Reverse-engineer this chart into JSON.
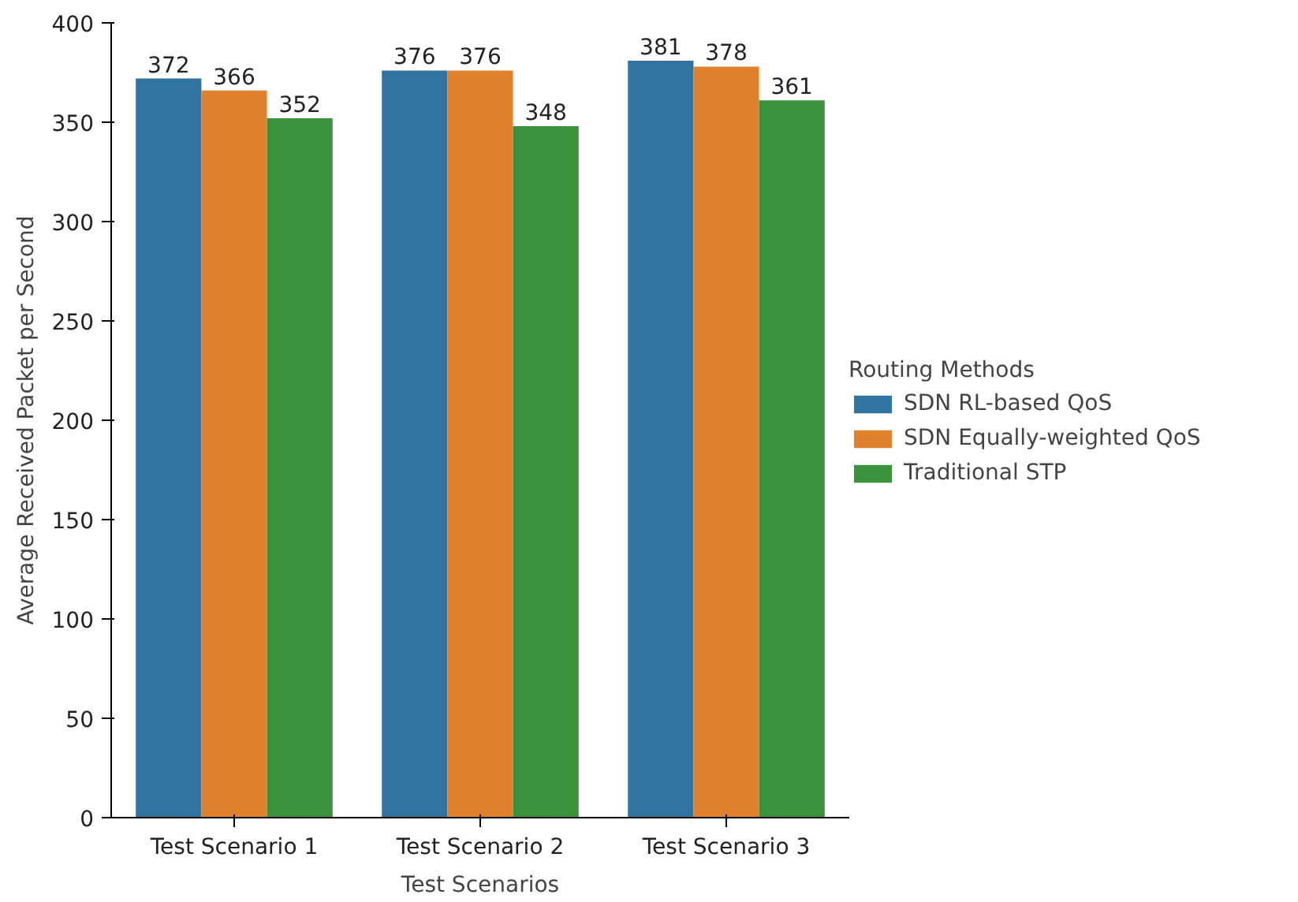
{
  "chart_data": {
    "type": "bar",
    "xlabel": "Test Scenarios",
    "ylabel": "Average Received Packet per Second",
    "legend_title": "Routing Methods",
    "categories": [
      "Test Scenario 1",
      "Test Scenario 2",
      "Test Scenario 3"
    ],
    "series": [
      {
        "name": "SDN RL-based QoS",
        "color": "#3274a1",
        "values": [
          372,
          376,
          381
        ]
      },
      {
        "name": "SDN Equally-weighted QoS",
        "color": "#e1812c",
        "values": [
          366,
          376,
          378
        ]
      },
      {
        "name": "Traditional STP",
        "color": "#3a923a",
        "values": [
          352,
          348,
          361
        ]
      }
    ],
    "ylim": [
      0,
      400
    ],
    "yticks": [
      0,
      50,
      100,
      150,
      200,
      250,
      300,
      350,
      400
    ],
    "grid": false,
    "legend": "right",
    "data_labels": true
  }
}
